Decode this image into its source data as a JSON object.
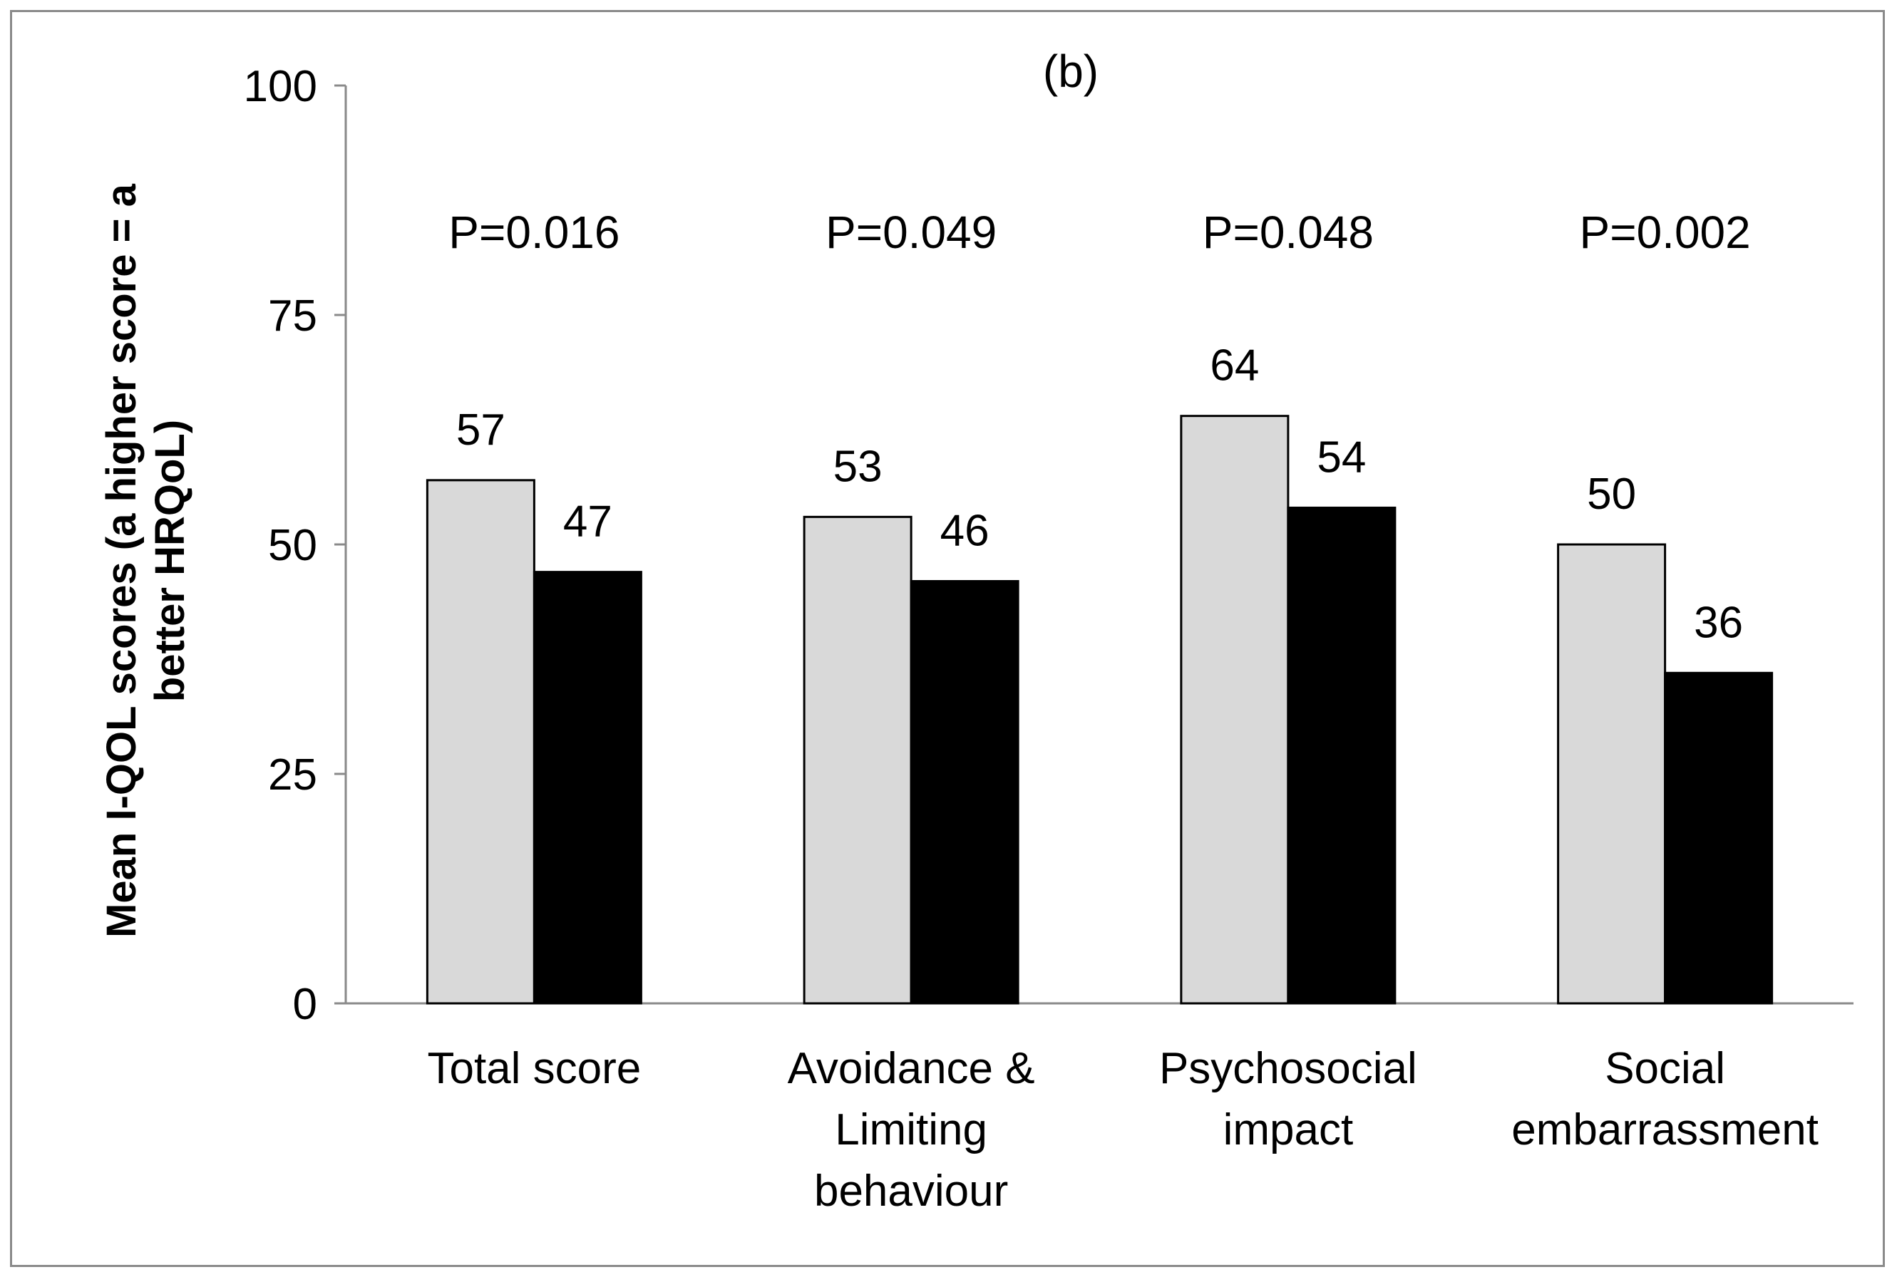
{
  "chart_data": {
    "type": "bar",
    "title": "(b)",
    "ylabel_lines": [
      "Mean I-QOL  scores (a higher score = a",
      "better HRQoL)"
    ],
    "xlabel": "",
    "ylim": [
      0,
      100
    ],
    "yticks": [
      "0",
      "25",
      "50",
      "75",
      "100"
    ],
    "categories": [
      [
        "Total score"
      ],
      [
        "Avoidance &",
        "Limiting",
        "behaviour"
      ],
      [
        "Psychosocial",
        "impact"
      ],
      [
        "Social",
        "embarrassment"
      ]
    ],
    "series": [
      {
        "values": [
          57,
          53,
          64,
          50
        ],
        "labels": [
          "57",
          "53",
          "64",
          "50"
        ],
        "color": "#d9d9d9"
      },
      {
        "values": [
          47,
          46,
          54,
          36
        ],
        "labels": [
          "47",
          "46",
          "54",
          "36"
        ],
        "color": "#000000"
      }
    ],
    "p_values": [
      "P=0.016",
      "P=0.049",
      "P=0.048",
      "P=0.002"
    ],
    "grid": false,
    "legend": "none"
  }
}
